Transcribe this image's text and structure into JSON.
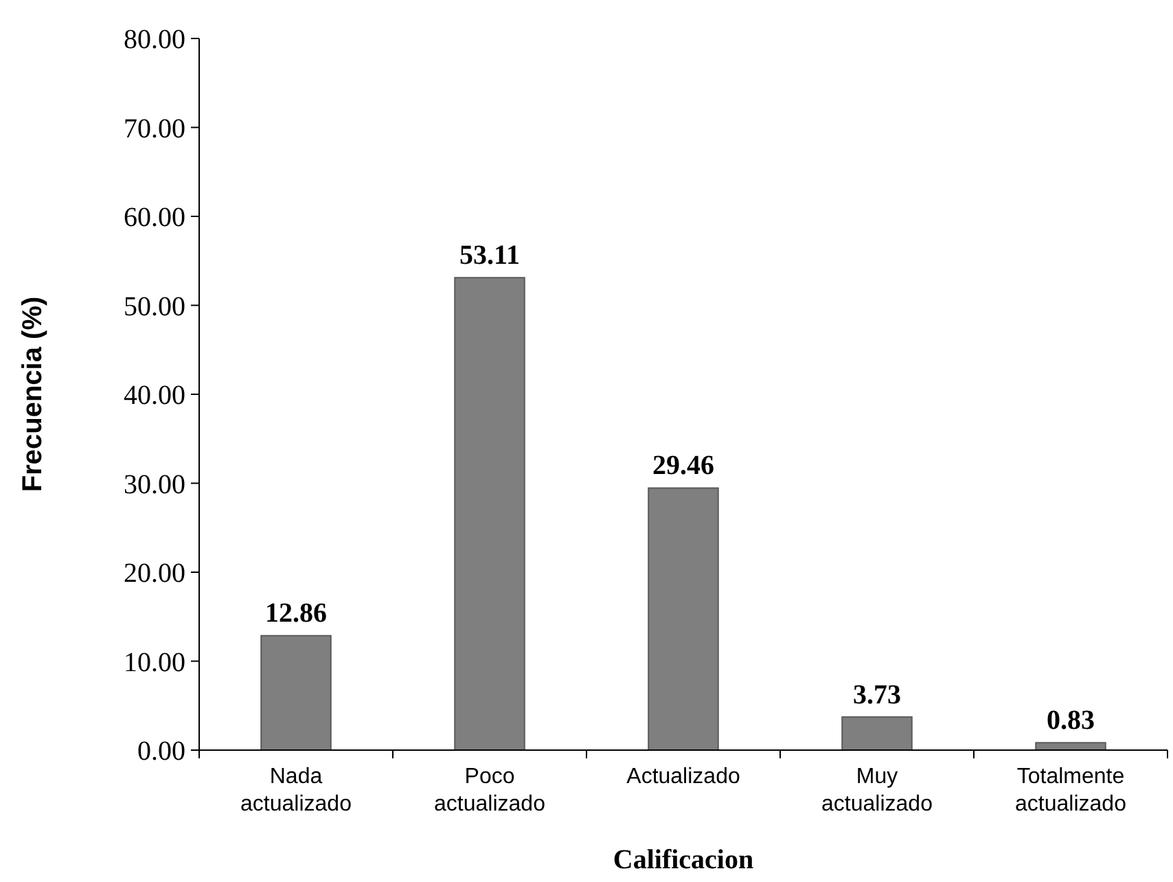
{
  "chart_data": {
    "type": "bar",
    "xlabel": "Calificacion",
    "ylabel": "Frecuencia (%)",
    "categories": [
      "Nada actualizado",
      "Poco actualizado",
      "Actualizado",
      "Muy actualizado",
      "Totalmente actualizado"
    ],
    "values": [
      12.86,
      53.11,
      29.46,
      3.73,
      0.83
    ],
    "color": "#7f7f7f",
    "ylim": [
      0,
      80
    ],
    "yticks": [
      {
        "value": 0,
        "label": "0.00"
      },
      {
        "value": 10,
        "label": "10.00"
      },
      {
        "value": 20,
        "label": "20.00"
      },
      {
        "value": 30,
        "label": "30.00"
      },
      {
        "value": 40,
        "label": "40.00"
      },
      {
        "value": 50,
        "label": "50.00"
      },
      {
        "value": 60,
        "label": "60.00"
      },
      {
        "value": 70,
        "label": "70.00"
      },
      {
        "value": 80,
        "label": "80.00"
      }
    ],
    "data_labels": true,
    "grid": false
  }
}
